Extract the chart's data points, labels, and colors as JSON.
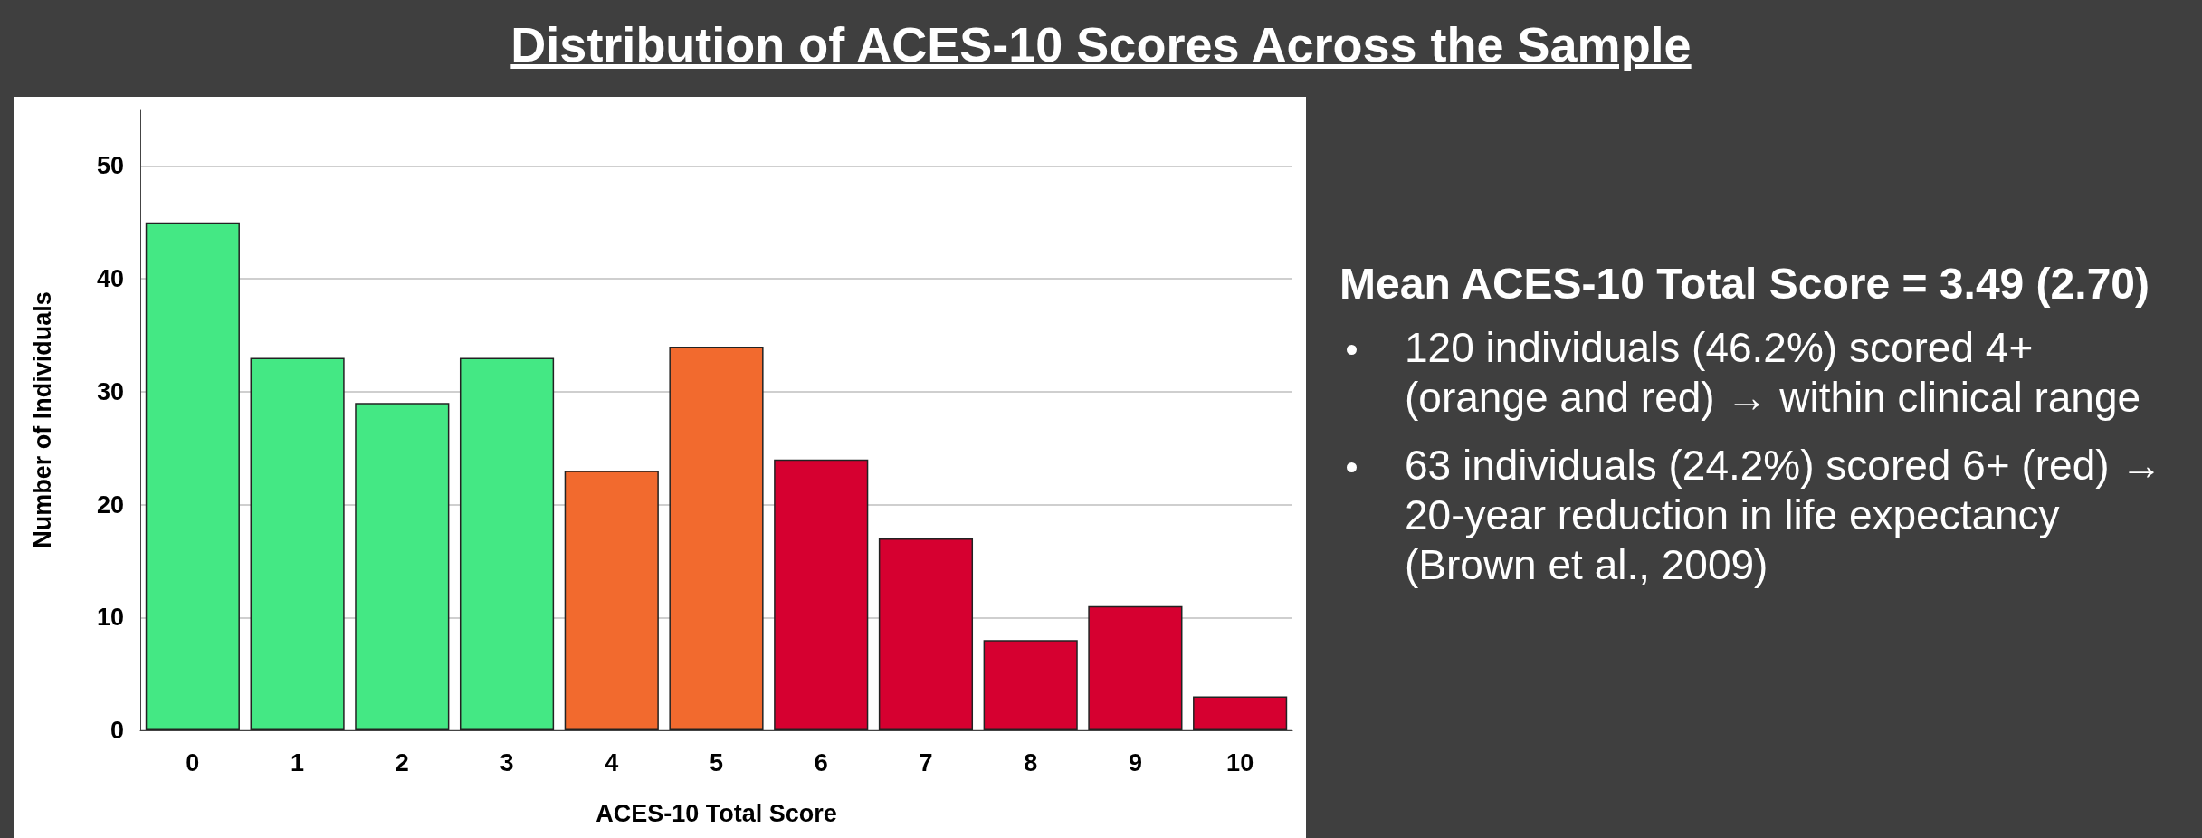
{
  "chart_data": {
    "type": "bar",
    "title": "Distribution of ACES-10 Scores Across the Sample",
    "xlabel": "ACES-10 Total Score",
    "ylabel": "Number of Individuals",
    "categories": [
      "0",
      "1",
      "2",
      "3",
      "4",
      "5",
      "6",
      "7",
      "8",
      "9",
      "10"
    ],
    "values": [
      45,
      33,
      29,
      33,
      23,
      34,
      24,
      17,
      8,
      11,
      3
    ],
    "colors": [
      "#44e884",
      "#44e884",
      "#44e884",
      "#44e884",
      "#f26a2e",
      "#f26a2e",
      "#d60030",
      "#d60030",
      "#d60030",
      "#d60030",
      "#d60030"
    ],
    "ylim": [
      0,
      55
    ],
    "yticks": [
      0,
      10,
      20,
      30,
      40,
      50
    ],
    "grid": "y",
    "annotations": [
      "Mean ACES-10 Total Score = 3.49 (2.70)",
      "120 individuals (46.2%) scored 4+ (orange and red) → within clinical range",
      "63 individuals (24.2%) scored 6+ (red) → 20-year reduction in life expectancy (Brown et al., 2009)"
    ]
  }
}
